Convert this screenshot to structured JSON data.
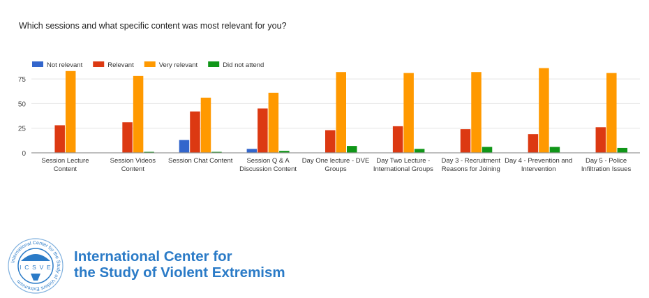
{
  "page": {
    "question": "Which sessions and what specific content was most relevant for you?"
  },
  "organization": {
    "name_line1": "International Center for",
    "name_line2": "the Study of Violent Extremism",
    "logo_acronym": "ICSVE",
    "logo_ring_text": "International Center for the Study of Violent Extremism"
  },
  "chart_data": {
    "type": "bar",
    "title": "Which sessions and what specific content was most relevant for you?",
    "xlabel": "",
    "ylabel": "",
    "ylim": [
      0,
      90
    ],
    "yticks": [
      0,
      25,
      50,
      75
    ],
    "grid": true,
    "legend_position": "top-left",
    "categories": [
      [
        "Session Lecture",
        "Content"
      ],
      [
        "Session Videos",
        "Content"
      ],
      [
        "Session Chat Content"
      ],
      [
        "Session Q & A",
        "Discussion Content"
      ],
      [
        "Day One lecture - DVE",
        "Groups"
      ],
      [
        "Day Two Lecture -",
        "International Groups"
      ],
      [
        "Day 3 - Recruitment",
        "Reasons for Joining"
      ],
      [
        "Day 4 - Prevention and",
        "Intervention"
      ],
      [
        "Day 5 - Police",
        "Infiltration Issues"
      ]
    ],
    "series": [
      {
        "name": "Not relevant",
        "color": "#3366cc",
        "values": [
          0,
          0,
          13,
          4,
          0,
          0,
          0,
          0,
          0
        ]
      },
      {
        "name": "Relevant",
        "color": "#dc3912",
        "values": [
          28,
          31,
          42,
          45,
          23,
          27,
          24,
          19,
          26
        ]
      },
      {
        "name": "Very relevant",
        "color": "#ff9900",
        "values": [
          83,
          78,
          56,
          61,
          82,
          81,
          82,
          86,
          81
        ]
      },
      {
        "name": "Did not attend",
        "color": "#109618",
        "values": [
          0,
          1,
          1,
          2,
          7,
          4,
          6,
          6,
          5
        ]
      }
    ]
  }
}
